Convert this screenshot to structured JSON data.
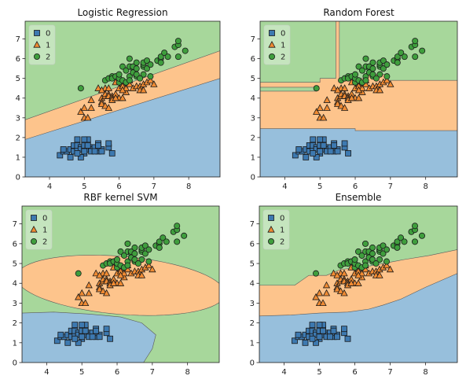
{
  "colors": {
    "region_0": "#97bfdc",
    "region_1": "#fdc48c",
    "region_2": "#a7d79b",
    "marker_0": "#3d79b0",
    "marker_1": "#f08b33",
    "marker_2": "#3f9e3d"
  },
  "chart_data": [
    {
      "type": "scatter",
      "title": "Logistic Regression",
      "xlim": [
        3.3,
        8.9
      ],
      "ylim": [
        0,
        7.9
      ],
      "xticks": [
        "4",
        "5",
        "6",
        "7",
        "8"
      ],
      "yticks": [
        "0",
        "1",
        "2",
        "3",
        "4",
        "5",
        "6",
        "7"
      ],
      "legend": [
        "0",
        "1",
        "2"
      ],
      "legend_position": "top-left",
      "regions": "linear"
    },
    {
      "type": "scatter",
      "title": "Random Forest",
      "xlim": [
        3.3,
        8.9
      ],
      "ylim": [
        0,
        7.9
      ],
      "xticks": [
        "4",
        "5",
        "6",
        "7",
        "8"
      ],
      "yticks": [
        "0",
        "1",
        "2",
        "3",
        "4",
        "5",
        "6",
        "7"
      ],
      "legend": [
        "0",
        "1",
        "2"
      ],
      "legend_position": "top-left",
      "regions": "axis-aligned"
    },
    {
      "type": "scatter",
      "title": "RBF kernel SVM",
      "xlim": [
        3.3,
        8.9
      ],
      "ylim": [
        0,
        7.9
      ],
      "xticks": [
        "4",
        "5",
        "6",
        "7",
        "8"
      ],
      "yticks": [
        "0",
        "1",
        "2",
        "3",
        "4",
        "5",
        "6",
        "7"
      ],
      "legend": [
        "0",
        "1",
        "2"
      ],
      "legend_position": "top-left",
      "regions": "rbf"
    },
    {
      "type": "scatter",
      "title": "Ensemble",
      "xlim": [
        3.3,
        8.9
      ],
      "ylim": [
        0,
        7.9
      ],
      "xticks": [
        "4",
        "5",
        "6",
        "7",
        "8"
      ],
      "yticks": [
        "0",
        "1",
        "2",
        "3",
        "4",
        "5",
        "6",
        "7"
      ],
      "legend": [
        "0",
        "1",
        "2"
      ],
      "legend_position": "top-left",
      "regions": "stepped"
    }
  ],
  "points": {
    "class_0": [
      [
        4.3,
        1.1
      ],
      [
        4.4,
        1.3
      ],
      [
        4.5,
        1.3
      ],
      [
        4.6,
        1.4
      ],
      [
        4.6,
        1.0
      ],
      [
        4.7,
        1.3
      ],
      [
        4.7,
        1.6
      ],
      [
        4.8,
        1.4
      ],
      [
        4.8,
        1.6
      ],
      [
        4.8,
        1.9
      ],
      [
        4.9,
        1.5
      ],
      [
        4.9,
        1.4
      ],
      [
        5.0,
        1.4
      ],
      [
        5.0,
        1.6
      ],
      [
        5.0,
        1.2
      ],
      [
        5.1,
        1.5
      ],
      [
        5.1,
        1.4
      ],
      [
        5.1,
        1.7
      ],
      [
        5.1,
        1.9
      ],
      [
        5.2,
        1.5
      ],
      [
        5.2,
        1.4
      ],
      [
        5.3,
        1.5
      ],
      [
        5.4,
        1.3
      ],
      [
        5.4,
        1.7
      ],
      [
        5.4,
        1.5
      ],
      [
        5.5,
        1.4
      ],
      [
        5.5,
        1.3
      ],
      [
        5.7,
        1.5
      ],
      [
        5.7,
        1.7
      ],
      [
        5.8,
        1.2
      ],
      [
        4.9,
        1.0
      ],
      [
        5.0,
        1.3
      ],
      [
        4.4,
        1.4
      ],
      [
        5.4,
        1.6
      ],
      [
        5.2,
        1.3
      ],
      [
        5.1,
        1.6
      ],
      [
        4.8,
        1.2
      ],
      [
        5.0,
        1.9
      ],
      [
        5.3,
        1.3
      ]
    ],
    "class_1": [
      [
        4.9,
        3.3
      ],
      [
        5.0,
        3.5
      ],
      [
        5.0,
        3.0
      ],
      [
        5.1,
        3.0
      ],
      [
        5.2,
        3.9
      ],
      [
        5.4,
        4.5
      ],
      [
        5.5,
        4.0
      ],
      [
        5.5,
        3.8
      ],
      [
        5.5,
        3.7
      ],
      [
        5.6,
        3.6
      ],
      [
        5.6,
        4.5
      ],
      [
        5.6,
        4.1
      ],
      [
        5.6,
        4.2
      ],
      [
        5.7,
        3.5
      ],
      [
        5.7,
        4.2
      ],
      [
        5.7,
        4.5
      ],
      [
        5.7,
        4.1
      ],
      [
        5.8,
        4.1
      ],
      [
        5.8,
        4.0
      ],
      [
        5.8,
        3.9
      ],
      [
        5.9,
        4.8
      ],
      [
        5.9,
        4.2
      ],
      [
        6.0,
        4.0
      ],
      [
        6.0,
        4.5
      ],
      [
        6.0,
        5.1
      ],
      [
        6.1,
        4.7
      ],
      [
        6.1,
        4.0
      ],
      [
        6.1,
        4.6
      ],
      [
        6.2,
        4.3
      ],
      [
        6.2,
        4.5
      ],
      [
        6.3,
        4.7
      ],
      [
        6.3,
        4.9
      ],
      [
        6.4,
        4.5
      ],
      [
        6.5,
        4.6
      ],
      [
        6.6,
        4.6
      ],
      [
        6.6,
        4.4
      ],
      [
        6.7,
        4.4
      ],
      [
        6.7,
        4.7
      ],
      [
        6.8,
        4.8
      ],
      [
        6.9,
        4.9
      ],
      [
        7.0,
        4.7
      ],
      [
        5.5,
        4.4
      ],
      [
        5.9,
        4.0
      ],
      [
        5.2,
        3.5
      ],
      [
        6.1,
        4.4
      ]
    ],
    "class_2": [
      [
        4.9,
        4.5
      ],
      [
        5.6,
        4.9
      ],
      [
        5.7,
        5.0
      ],
      [
        5.8,
        5.1
      ],
      [
        5.8,
        5.0
      ],
      [
        5.9,
        5.1
      ],
      [
        6.0,
        4.8
      ],
      [
        6.0,
        5.0
      ],
      [
        6.1,
        4.9
      ],
      [
        6.1,
        5.6
      ],
      [
        6.2,
        4.8
      ],
      [
        6.2,
        5.4
      ],
      [
        6.3,
        5.1
      ],
      [
        6.3,
        5.6
      ],
      [
        6.3,
        6.0
      ],
      [
        6.3,
        4.9
      ],
      [
        6.4,
        5.3
      ],
      [
        6.4,
        5.5
      ],
      [
        6.4,
        5.6
      ],
      [
        6.4,
        5.3
      ],
      [
        6.5,
        5.1
      ],
      [
        6.5,
        5.5
      ],
      [
        6.5,
        5.8
      ],
      [
        6.5,
        5.2
      ],
      [
        6.7,
        5.6
      ],
      [
        6.7,
        5.7
      ],
      [
        6.7,
        5.8
      ],
      [
        6.7,
        5.2
      ],
      [
        6.8,
        5.5
      ],
      [
        6.8,
        5.9
      ],
      [
        6.9,
        5.1
      ],
      [
        6.9,
        5.7
      ],
      [
        7.1,
        5.9
      ],
      [
        7.2,
        6.0
      ],
      [
        7.2,
        5.8
      ],
      [
        7.2,
        6.1
      ],
      [
        7.3,
        6.3
      ],
      [
        7.4,
        6.1
      ],
      [
        7.6,
        6.6
      ],
      [
        7.7,
        6.7
      ],
      [
        7.7,
        6.9
      ],
      [
        7.7,
        6.1
      ],
      [
        7.9,
        6.4
      ],
      [
        6.0,
        5.2
      ],
      [
        6.6,
        5.0
      ]
    ]
  }
}
